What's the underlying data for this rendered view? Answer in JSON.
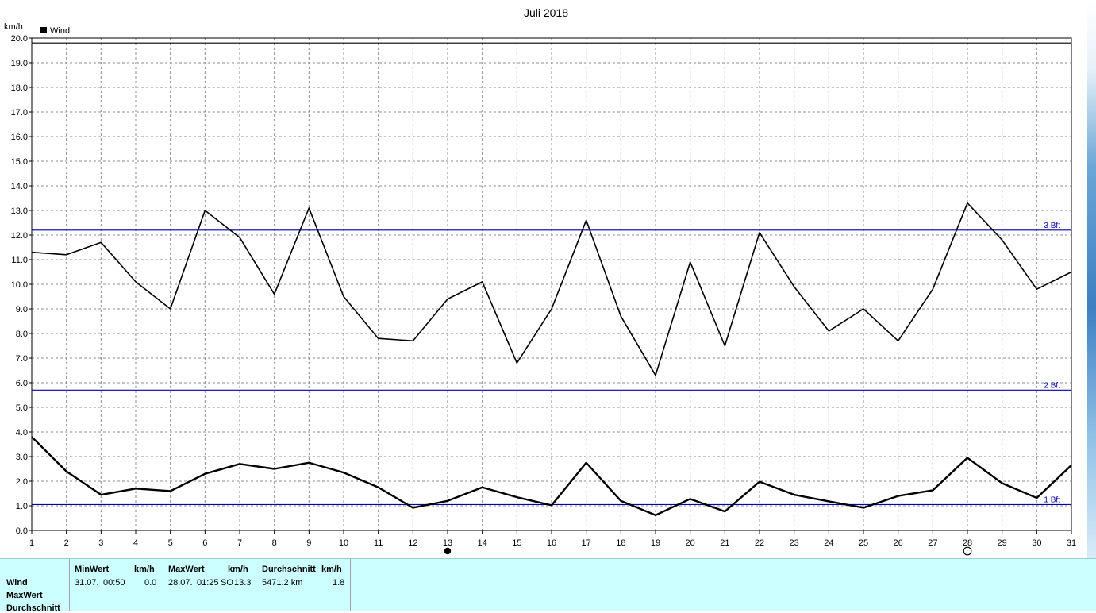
{
  "chart_data": {
    "type": "line",
    "title": "Juli 2018",
    "ylabel": "km/h",
    "xlabel": "",
    "ylim": [
      0,
      20
    ],
    "xlim": [
      1,
      31
    ],
    "x": [
      1,
      2,
      3,
      4,
      5,
      6,
      7,
      8,
      9,
      10,
      11,
      12,
      13,
      14,
      15,
      16,
      17,
      18,
      19,
      20,
      21,
      22,
      23,
      24,
      25,
      26,
      27,
      28,
      29,
      30,
      31
    ],
    "yticks": [
      "0.0",
      "1.0",
      "2.0",
      "3.0",
      "4.0",
      "5.0",
      "6.0",
      "7.0",
      "8.0",
      "9.0",
      "10.0",
      "11.0",
      "12.0",
      "13.0",
      "14.0",
      "15.0",
      "16.0",
      "17.0",
      "18.0",
      "19.0",
      "20.0"
    ],
    "grid": true,
    "legend": {
      "placement": "top-left",
      "entries": [
        "Wind"
      ]
    },
    "series": [
      {
        "name": "",
        "role": "max",
        "color": "#000000",
        "values": [
          11.3,
          11.2,
          11.7,
          10.1,
          9.0,
          13.0,
          11.9,
          9.6,
          13.1,
          9.5,
          7.8,
          7.7,
          9.4,
          10.1,
          6.8,
          9.0,
          12.6,
          8.7,
          6.3,
          10.9,
          7.5,
          12.1,
          9.9,
          8.1,
          9.0,
          7.7,
          9.8,
          13.3,
          11.8,
          9.8,
          10.5
        ]
      },
      {
        "name": "",
        "role": "average",
        "color": "#000000",
        "values": [
          3.8,
          2.4,
          1.45,
          1.7,
          1.6,
          2.3,
          2.7,
          2.5,
          2.75,
          2.35,
          1.75,
          0.92,
          1.2,
          1.75,
          1.35,
          1.02,
          2.75,
          1.2,
          0.62,
          1.28,
          0.77,
          1.98,
          1.45,
          1.18,
          0.92,
          1.4,
          1.63,
          2.95,
          1.92,
          1.32,
          2.65
        ]
      }
    ],
    "reference_lines": [
      {
        "label": "1 Bft",
        "value": 1.05,
        "color": "#0000aa"
      },
      {
        "label": "2 Bft",
        "value": 5.7,
        "color": "#0000aa"
      },
      {
        "label": "3 Bft",
        "value": 12.2,
        "color": "#0000aa"
      }
    ],
    "extra_lines": [
      {
        "value": 19.8,
        "color": "#000000"
      }
    ],
    "moon_phases": [
      {
        "day": 13,
        "phase": "new-moon"
      },
      {
        "day": 28,
        "phase": "full-moon"
      }
    ]
  },
  "footer": {
    "rows": [
      "Wind",
      "MaxWert",
      "Durchschnitt"
    ],
    "min": {
      "header": "MinWert",
      "unit": "km/h",
      "date": "31.07.",
      "time": "00:50",
      "value": "0.0"
    },
    "max": {
      "header": "MaxWert",
      "unit": "km/h",
      "date": "28.07.",
      "time": "01:25",
      "dir": "SO",
      "value": "13.3"
    },
    "avg": {
      "header": "Durchschnitt",
      "unit": "km/h",
      "distance": "5471.2 km",
      "value": "1.8"
    }
  }
}
